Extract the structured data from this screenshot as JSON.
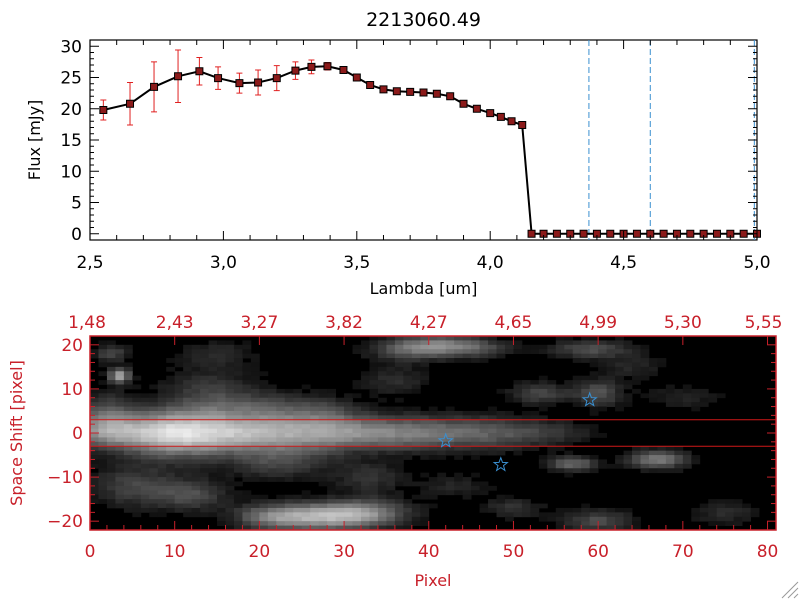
{
  "chart_data": [
    {
      "type": "line",
      "title": "2213060.49",
      "xlabel": "Lambda [um]",
      "ylabel": "Flux [mJy]",
      "xlim": [
        2.5,
        5.0
      ],
      "ylim": [
        -1,
        31
      ],
      "xticks": [
        "2.5",
        "3.0",
        "3.5",
        "4.0",
        "4.5",
        "5.0"
      ],
      "yticks": [
        "0",
        "5",
        "10",
        "15",
        "20",
        "25",
        "30"
      ],
      "grid": false,
      "colors": {
        "line": "#000000",
        "marker": "#8b1a1a",
        "error": "#e02020",
        "vline": "#3a8fd0",
        "zero_line": "#e02020"
      },
      "series": [
        {
          "x": [
            2.55,
            2.65,
            2.74,
            2.83,
            2.91,
            2.98,
            3.06,
            3.13,
            3.2,
            3.27,
            3.33,
            3.39,
            3.45,
            3.5,
            3.55,
            3.6,
            3.65,
            3.7,
            3.75,
            3.8,
            3.85,
            3.9,
            3.95,
            4.0,
            4.04,
            4.08,
            4.12,
            4.155,
            4.2,
            4.25,
            4.3,
            4.35,
            4.4,
            4.45,
            4.5,
            4.55,
            4.6,
            4.65,
            4.7,
            4.75,
            4.8,
            4.85,
            4.9,
            4.95,
            5.0
          ],
          "y": [
            19.8,
            20.8,
            23.5,
            25.2,
            26.0,
            24.9,
            24.1,
            24.2,
            24.9,
            26.1,
            26.7,
            26.8,
            26.2,
            25.0,
            23.8,
            23.1,
            22.8,
            22.7,
            22.6,
            22.4,
            22.0,
            20.8,
            20.0,
            19.3,
            18.7,
            18.0,
            17.4,
            0,
            0,
            0,
            0,
            0,
            0,
            0,
            0,
            0,
            0,
            0,
            0,
            0,
            0,
            0,
            0,
            0,
            0
          ],
          "yerr": [
            1.6,
            3.4,
            4.0,
            4.2,
            2.2,
            1.8,
            1.6,
            2.0,
            2.0,
            1.4,
            1.1,
            0.6,
            0.4,
            0.3,
            0.3,
            0.3,
            0.3,
            0.3,
            0.3,
            0.3,
            0.3,
            0.3,
            0.3,
            0.3,
            0.3,
            0.3,
            0.3,
            0,
            0,
            0,
            0,
            0,
            0,
            0,
            0,
            0,
            0,
            0,
            0,
            0,
            0,
            0,
            0,
            0,
            0
          ]
        }
      ],
      "vlines": [
        4.37,
        4.6,
        4.99
      ]
    },
    {
      "type": "heatmap",
      "xlabel": "Pixel",
      "ylabel": "Space Shift [pixel]",
      "xlim": [
        0,
        81
      ],
      "ylim": [
        -22,
        22
      ],
      "xticks": [
        "0",
        "10",
        "20",
        "30",
        "40",
        "50",
        "60",
        "70",
        "80"
      ],
      "yticks": [
        "-20",
        "-10",
        "0",
        "10",
        "20"
      ],
      "top_xticks": [
        "1.48",
        "2.43",
        "3.27",
        "3.82",
        "4.27",
        "4.65",
        "4.99",
        "5.30",
        "5.55"
      ],
      "aperture_lines": [
        3,
        -3
      ],
      "colors": {
        "frame": "#c8202a",
        "star": "#3a8fd0",
        "aperture": "#d01818"
      },
      "stars": [
        {
          "x": 42,
          "y": -1.8
        },
        {
          "x": 48.5,
          "y": -7.2
        },
        {
          "x": 59,
          "y": 7.5
        }
      ],
      "spectrum_trace": {
        "profile_x": [
          0,
          2,
          5,
          8,
          10,
          12,
          14,
          17,
          20,
          24,
          28,
          32,
          36,
          40,
          44,
          48,
          52,
          55,
          58,
          61
        ],
        "profile_peak": [
          0.45,
          0.55,
          0.75,
          0.92,
          1.0,
          0.98,
          0.92,
          0.85,
          0.78,
          0.72,
          0.68,
          0.63,
          0.58,
          0.52,
          0.46,
          0.4,
          0.32,
          0.24,
          0.14,
          0.05
        ],
        "width": [
          6,
          6,
          7,
          8,
          8,
          8,
          8,
          7,
          7,
          7,
          7,
          6,
          6,
          6,
          6,
          6,
          5,
          5,
          4,
          4
        ]
      },
      "blobs": [
        {
          "x": 3.5,
          "y": 13,
          "sx": 0.9,
          "sy": 1.1,
          "a": 0.72
        },
        {
          "x": 2.5,
          "y": 18,
          "sx": 1.5,
          "sy": 1.5,
          "a": 0.3
        },
        {
          "x": 2,
          "y": 4,
          "sx": 2.2,
          "sy": 3.5,
          "a": 0.35
        },
        {
          "x": 5,
          "y": -12,
          "sx": 3.5,
          "sy": 3.5,
          "a": 0.28
        },
        {
          "x": 12,
          "y": -14,
          "sx": 3.0,
          "sy": 2.5,
          "a": 0.32
        },
        {
          "x": 14,
          "y": 10,
          "sx": 4.0,
          "sy": 3.5,
          "a": 0.22
        },
        {
          "x": 20,
          "y": 6,
          "sx": 5.0,
          "sy": 2.5,
          "a": 0.25
        },
        {
          "x": 22,
          "y": -7,
          "sx": 4.0,
          "sy": 2.5,
          "a": 0.26
        },
        {
          "x": 27,
          "y": -19,
          "sx": 4.5,
          "sy": 2.2,
          "a": 0.68
        },
        {
          "x": 33,
          "y": -18,
          "sx": 3.5,
          "sy": 2.2,
          "a": 0.42
        },
        {
          "x": 21,
          "y": -19,
          "sx": 3.0,
          "sy": 2.0,
          "a": 0.32
        },
        {
          "x": 33,
          "y": -10,
          "sx": 3.0,
          "sy": 2.5,
          "a": 0.22
        },
        {
          "x": 38,
          "y": 19,
          "sx": 3.5,
          "sy": 1.8,
          "a": 0.38
        },
        {
          "x": 42,
          "y": 20,
          "sx": 3.5,
          "sy": 1.6,
          "a": 0.36
        },
        {
          "x": 36,
          "y": 12,
          "sx": 3.0,
          "sy": 2.5,
          "a": 0.18
        },
        {
          "x": 46,
          "y": 19,
          "sx": 3.0,
          "sy": 1.5,
          "a": 0.22
        },
        {
          "x": 53,
          "y": 9,
          "sx": 2.5,
          "sy": 1.8,
          "a": 0.3
        },
        {
          "x": 60,
          "y": 9,
          "sx": 2.0,
          "sy": 2.2,
          "a": 0.35
        },
        {
          "x": 59,
          "y": 19,
          "sx": 3.5,
          "sy": 1.6,
          "a": 0.32
        },
        {
          "x": 57,
          "y": -7,
          "sx": 2.0,
          "sy": 1.2,
          "a": 0.45
        },
        {
          "x": 67,
          "y": -6,
          "sx": 2.5,
          "sy": 1.5,
          "a": 0.52
        },
        {
          "x": 60,
          "y": -20,
          "sx": 3.0,
          "sy": 1.8,
          "a": 0.32
        },
        {
          "x": 50,
          "y": -17,
          "sx": 2.5,
          "sy": 1.6,
          "a": 0.22
        },
        {
          "x": 75,
          "y": -18,
          "sx": 3.0,
          "sy": 2.0,
          "a": 0.18
        },
        {
          "x": 43,
          "y": -12,
          "sx": 3.0,
          "sy": 2.0,
          "a": 0.15
        },
        {
          "x": 15,
          "y": 18,
          "sx": 3.0,
          "sy": 2.0,
          "a": 0.18
        },
        {
          "x": 28,
          "y": 5,
          "sx": 3.0,
          "sy": 2.5,
          "a": 0.15
        },
        {
          "x": 70,
          "y": 8,
          "sx": 3.0,
          "sy": 2.0,
          "a": 0.15
        },
        {
          "x": 64,
          "y": 15,
          "sx": 2.5,
          "sy": 2.0,
          "a": 0.16
        }
      ]
    }
  ]
}
